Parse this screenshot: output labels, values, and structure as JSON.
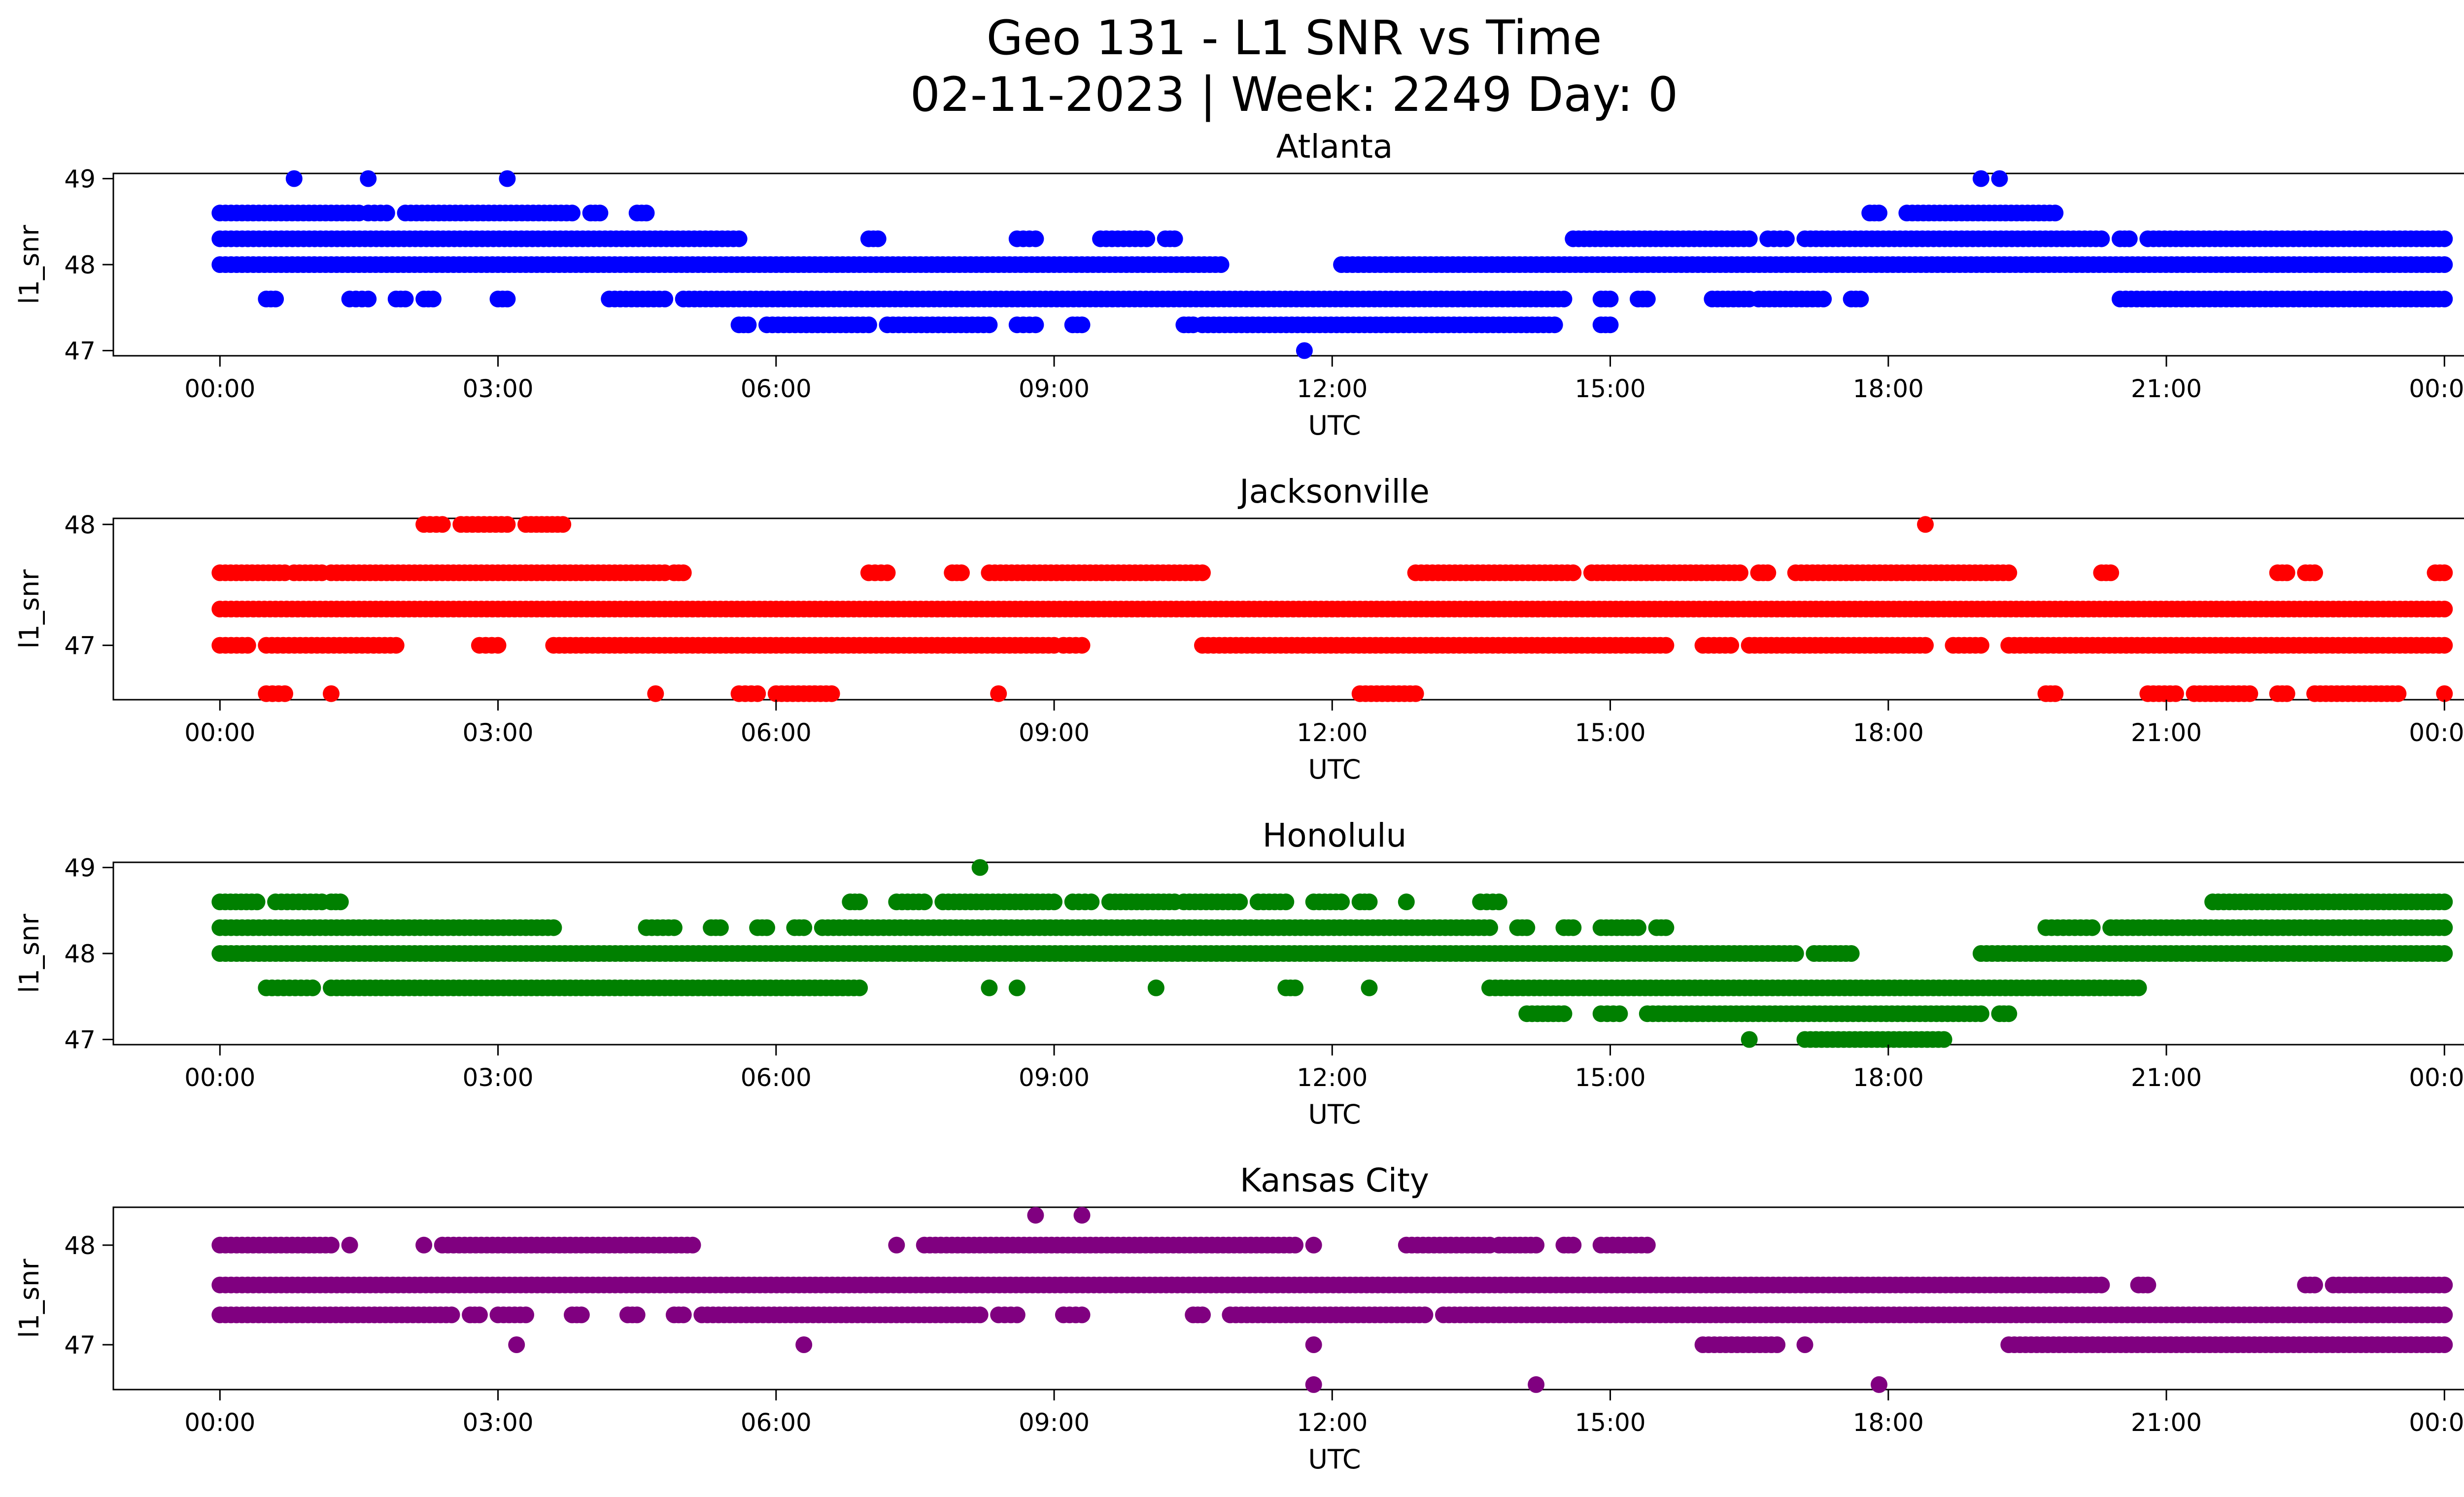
{
  "chart_data": {
    "type": "scatter",
    "title": "Geo 131 - L1 SNR vs Time",
    "subtitle": "02-11-2023 | Week: 2249 Day: 0",
    "xlabel": "UTC",
    "ylabel": "l1_snr",
    "x_ticks": [
      "00:00",
      "03:00",
      "06:00",
      "09:00",
      "12:00",
      "15:00",
      "18:00",
      "21:00",
      "00:00"
    ],
    "xlim_hours": [
      -1.15,
      25.2
    ],
    "grid": false,
    "panels": [
      {
        "name": "Atlanta",
        "color": "#0000ff",
        "ylim": [
          46.94,
          49.06
        ],
        "yticks": [
          47,
          48,
          49
        ],
        "points": [
          {
            "y": 48.0,
            "ranges": [
              [
                0.0,
                10.8
              ],
              [
                12.1,
                24.0
              ]
            ]
          },
          {
            "y": 48.3,
            "ranges": [
              [
                0.0,
                5.6
              ],
              [
                7.0,
                7.1
              ],
              [
                8.6,
                8.8
              ],
              [
                9.5,
                10.0
              ],
              [
                10.2,
                10.3
              ],
              [
                14.6,
                16.5
              ],
              [
                16.7,
                16.9
              ],
              [
                17.1,
                20.3
              ],
              [
                20.5,
                20.6
              ],
              [
                20.8,
                24.0
              ]
            ]
          },
          {
            "y": 48.6,
            "ranges": [
              [
                0.0,
                1.5
              ],
              [
                1.6,
                1.8
              ],
              [
                2.0,
                3.8
              ],
              [
                4.0,
                4.1
              ],
              [
                4.5,
                4.6
              ],
              [
                17.8,
                17.9
              ],
              [
                18.2,
                19.8
              ]
            ]
          },
          {
            "y": 47.6,
            "ranges": [
              [
                0.5,
                0.6
              ],
              [
                1.4,
                1.6
              ],
              [
                1.9,
                2.0
              ],
              [
                2.2,
                2.3
              ],
              [
                3.0,
                3.1
              ],
              [
                4.2,
                4.8
              ],
              [
                5.0,
                14.5
              ],
              [
                14.9,
                15.0
              ],
              [
                15.3,
                15.4
              ],
              [
                16.1,
                16.5
              ],
              [
                16.6,
                17.3
              ],
              [
                17.6,
                17.7
              ],
              [
                20.5,
                24.0
              ]
            ]
          },
          {
            "y": 47.3,
            "ranges": [
              [
                5.6,
                5.7
              ],
              [
                5.9,
                7.0
              ],
              [
                7.2,
                8.3
              ],
              [
                8.6,
                8.8
              ],
              [
                9.2,
                9.3
              ],
              [
                10.4,
                10.5
              ],
              [
                10.6,
                14.4
              ],
              [
                14.9,
                15.0
              ]
            ]
          },
          {
            "y": 49.0,
            "ranges": [
              [
                0.8,
                0.8
              ],
              [
                1.6,
                1.6
              ],
              [
                3.1,
                3.1
              ],
              [
                19.0,
                19.0
              ],
              [
                19.2,
                19.2
              ]
            ]
          },
          {
            "y": 47.0,
            "ranges": [
              [
                11.7,
                11.7
              ]
            ]
          }
        ]
      },
      {
        "name": "Jacksonville",
        "color": "#ff0000",
        "ylim": [
          46.55,
          48.05
        ],
        "yticks": [
          47,
          48
        ],
        "points": [
          {
            "y": 47.3,
            "ranges": [
              [
                0.0,
                24.0
              ]
            ]
          },
          {
            "y": 47.6,
            "ranges": [
              [
                0.0,
                0.7
              ],
              [
                0.8,
                1.1
              ],
              [
                1.2,
                4.8
              ],
              [
                4.9,
                5.0
              ],
              [
                7.0,
                7.2
              ],
              [
                7.9,
                8.0
              ],
              [
                8.3,
                10.6
              ],
              [
                12.9,
                14.6
              ],
              [
                14.8,
                16.4
              ],
              [
                16.6,
                16.7
              ],
              [
                17.0,
                19.3
              ],
              [
                20.3,
                20.4
              ],
              [
                22.2,
                22.3
              ],
              [
                22.5,
                22.6
              ],
              [
                23.9,
                24.0
              ]
            ]
          },
          {
            "y": 47.0,
            "ranges": [
              [
                0.0,
                0.3
              ],
              [
                0.5,
                1.9
              ],
              [
                2.8,
                3.0
              ],
              [
                3.6,
                9.0
              ],
              [
                9.1,
                9.3
              ],
              [
                10.6,
                15.6
              ],
              [
                16.0,
                16.3
              ],
              [
                16.5,
                18.4
              ],
              [
                18.7,
                19.0
              ],
              [
                19.3,
                24.0
              ]
            ]
          },
          {
            "y": 48.0,
            "ranges": [
              [
                2.2,
                2.4
              ],
              [
                2.6,
                3.1
              ],
              [
                3.3,
                3.7
              ],
              [
                18.4,
                18.4
              ]
            ]
          },
          {
            "y": 46.6,
            "ranges": [
              [
                0.5,
                0.7
              ],
              [
                1.2,
                1.2
              ],
              [
                4.7,
                4.7
              ],
              [
                5.6,
                5.8
              ],
              [
                6.0,
                6.6
              ],
              [
                8.4,
                8.4
              ],
              [
                12.3,
                12.9
              ],
              [
                19.7,
                19.8
              ],
              [
                20.8,
                21.1
              ],
              [
                21.3,
                21.9
              ],
              [
                22.2,
                22.3
              ],
              [
                22.6,
                23.5
              ],
              [
                24.0,
                24.0
              ]
            ]
          }
        ]
      },
      {
        "name": "Honolulu",
        "color": "#008000",
        "ylim": [
          46.94,
          49.06
        ],
        "yticks": [
          47,
          48,
          49
        ],
        "points": [
          {
            "y": 48.0,
            "ranges": [
              [
                0.0,
                17.0
              ],
              [
                17.2,
                17.6
              ],
              [
                19.0,
                24.0
              ]
            ]
          },
          {
            "y": 48.3,
            "ranges": [
              [
                0.0,
                3.6
              ],
              [
                4.6,
                4.9
              ],
              [
                5.3,
                5.4
              ],
              [
                5.8,
                5.9
              ],
              [
                6.2,
                6.3
              ],
              [
                6.5,
                13.7
              ],
              [
                14.0,
                14.1
              ],
              [
                14.5,
                14.6
              ],
              [
                14.9,
                15.3
              ],
              [
                15.5,
                15.6
              ],
              [
                19.7,
                20.2
              ],
              [
                20.4,
                24.0
              ]
            ]
          },
          {
            "y": 48.6,
            "ranges": [
              [
                0.0,
                0.4
              ],
              [
                0.6,
                1.1
              ],
              [
                1.2,
                1.3
              ],
              [
                6.8,
                6.9
              ],
              [
                7.3,
                7.6
              ],
              [
                7.8,
                9.0
              ],
              [
                9.2,
                9.4
              ],
              [
                9.6,
                10.3
              ],
              [
                10.4,
                11.0
              ],
              [
                11.2,
                11.5
              ],
              [
                11.8,
                12.1
              ],
              [
                12.3,
                12.4
              ],
              [
                12.8,
                12.8
              ],
              [
                13.6,
                13.8
              ],
              [
                21.5,
                24.0
              ]
            ]
          },
          {
            "y": 47.6,
            "ranges": [
              [
                0.5,
                1.0
              ],
              [
                1.2,
                6.9
              ],
              [
                8.3,
                8.3
              ],
              [
                8.6,
                8.6
              ],
              [
                10.1,
                10.1
              ],
              [
                11.5,
                11.6
              ],
              [
                12.4,
                12.4
              ],
              [
                13.7,
                20.7
              ]
            ]
          },
          {
            "y": 47.3,
            "ranges": [
              [
                14.1,
                14.5
              ],
              [
                14.9,
                15.1
              ],
              [
                15.4,
                19.0
              ],
              [
                19.2,
                19.3
              ]
            ]
          },
          {
            "y": 47.0,
            "ranges": [
              [
                16.5,
                16.5
              ],
              [
                17.1,
                18.6
              ]
            ]
          },
          {
            "y": 49.0,
            "ranges": [
              [
                8.2,
                8.2
              ]
            ]
          }
        ]
      },
      {
        "name": "Kansas City",
        "color": "#800080",
        "ylim": [
          46.55,
          48.38
        ],
        "yticks": [
          47,
          48
        ],
        "points": [
          {
            "y": 47.6,
            "ranges": [
              [
                0.0,
                20.3
              ],
              [
                20.7,
                20.8
              ],
              [
                22.5,
                22.6
              ],
              [
                22.8,
                24.0
              ]
            ]
          },
          {
            "y": 48.0,
            "ranges": [
              [
                0.0,
                1.2
              ],
              [
                1.4,
                1.4
              ],
              [
                2.2,
                2.2
              ],
              [
                2.4,
                5.1
              ],
              [
                7.3,
                7.3
              ],
              [
                7.6,
                11.6
              ],
              [
                11.8,
                11.8
              ],
              [
                12.8,
                13.7
              ],
              [
                13.8,
                14.2
              ],
              [
                14.5,
                14.6
              ],
              [
                14.9,
                15.4
              ]
            ]
          },
          {
            "y": 47.3,
            "ranges": [
              [
                0.0,
                2.5
              ],
              [
                2.7,
                2.8
              ],
              [
                3.0,
                3.3
              ],
              [
                3.8,
                3.9
              ],
              [
                4.4,
                4.5
              ],
              [
                4.9,
                5.0
              ],
              [
                5.2,
                8.2
              ],
              [
                8.4,
                8.6
              ],
              [
                9.1,
                9.3
              ],
              [
                10.5,
                10.6
              ],
              [
                10.9,
                13.0
              ],
              [
                13.2,
                24.0
              ]
            ]
          },
          {
            "y": 47.0,
            "ranges": [
              [
                3.2,
                3.2
              ],
              [
                6.3,
                6.3
              ],
              [
                11.8,
                11.8
              ],
              [
                16.0,
                16.8
              ],
              [
                17.1,
                17.1
              ],
              [
                19.3,
                24.0
              ]
            ]
          },
          {
            "y": 48.3,
            "ranges": [
              [
                8.8,
                8.8
              ],
              [
                9.3,
                9.3
              ]
            ]
          },
          {
            "y": 46.6,
            "ranges": [
              [
                11.8,
                11.8
              ],
              [
                14.2,
                14.2
              ],
              [
                17.9,
                17.9
              ]
            ]
          }
        ]
      }
    ]
  }
}
